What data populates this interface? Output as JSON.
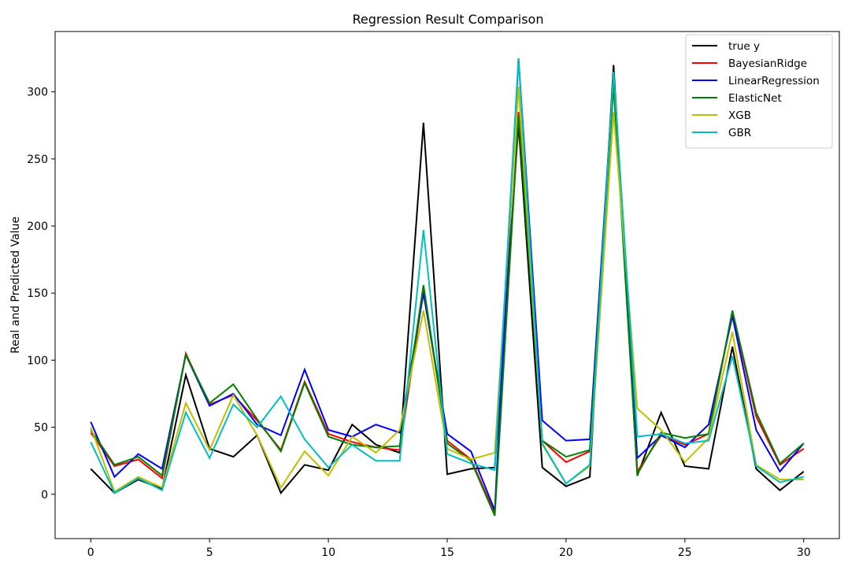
{
  "chart_data": {
    "type": "line",
    "title": "Regression Result Comparison",
    "xlabel": "",
    "ylabel": "Real and Predicted Value",
    "xlim": [
      -1.5,
      31.5
    ],
    "ylim": [
      -33,
      345
    ],
    "xticks": [
      0,
      5,
      10,
      15,
      20,
      25,
      30
    ],
    "yticks": [
      0,
      50,
      100,
      150,
      200,
      250,
      300
    ],
    "grid": false,
    "legend_position": "top-right",
    "x": [
      0,
      1,
      2,
      3,
      4,
      5,
      6,
      7,
      8,
      9,
      10,
      11,
      12,
      13,
      14,
      15,
      16,
      17,
      18,
      19,
      20,
      21,
      22,
      23,
      24,
      25,
      26,
      27,
      28,
      29,
      30
    ],
    "series": [
      {
        "name": "true y",
        "color": "#000000",
        "values": [
          19,
          1,
          11,
          4,
          89,
          34,
          28,
          44,
          1,
          22,
          18,
          52,
          37,
          31,
          277,
          15,
          19,
          20,
          276,
          20,
          6,
          13,
          320,
          14,
          61,
          21,
          19,
          110,
          19,
          3,
          17
        ]
      },
      {
        "name": "BayesianRidge",
        "color": "#ff0000",
        "values": [
          46,
          21,
          26,
          12,
          105,
          67,
          74,
          55,
          33,
          84,
          45,
          39,
          35,
          33,
          152,
          40,
          26,
          -14,
          285,
          40,
          24,
          32,
          306,
          17,
          44,
          37,
          45,
          136,
          58,
          22,
          34
        ]
      },
      {
        "name": "LinearRegression",
        "color": "#0000ff",
        "values": [
          54,
          13,
          30,
          19,
          104,
          66,
          75,
          52,
          44,
          93,
          48,
          43,
          52,
          46,
          150,
          45,
          32,
          -12,
          325,
          55,
          40,
          41,
          313,
          27,
          44,
          35,
          52,
          133,
          48,
          17,
          38
        ]
      },
      {
        "name": "ElasticNet",
        "color": "#008000",
        "values": [
          48,
          22,
          28,
          14,
          104,
          68,
          82,
          56,
          32,
          83,
          43,
          37,
          35,
          36,
          156,
          38,
          25,
          -16,
          282,
          40,
          28,
          33,
          305,
          15,
          46,
          42,
          45,
          137,
          61,
          23,
          38
        ]
      },
      {
        "name": "XGB",
        "color": "#bfbf00",
        "values": [
          50,
          2,
          13,
          5,
          68,
          33,
          74,
          44,
          5,
          32,
          14,
          43,
          31,
          48,
          137,
          34,
          26,
          31,
          304,
          37,
          8,
          21,
          285,
          64,
          48,
          24,
          42,
          121,
          22,
          11,
          11
        ]
      },
      {
        "name": "GBR",
        "color": "#00bfbf",
        "values": [
          39,
          1,
          12,
          3,
          61,
          27,
          67,
          50,
          73,
          41,
          20,
          37,
          25,
          25,
          197,
          30,
          23,
          18,
          325,
          38,
          8,
          22,
          315,
          43,
          45,
          38,
          40,
          103,
          21,
          9,
          13
        ]
      }
    ]
  }
}
